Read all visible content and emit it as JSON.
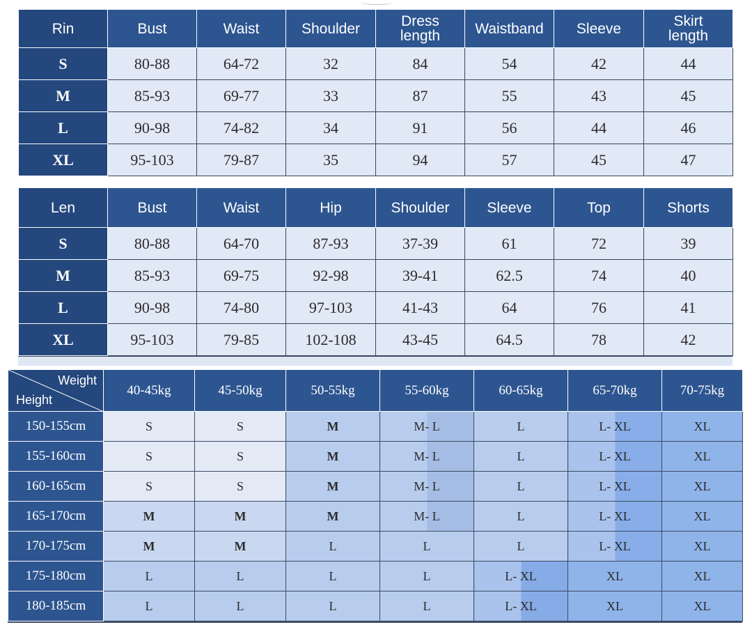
{
  "rin_table": {
    "headers": [
      {
        "line1": "Rin",
        "line2": ""
      },
      {
        "line1": "Bust",
        "line2": ""
      },
      {
        "line1": "Waist",
        "line2": ""
      },
      {
        "line1": "Shoulder",
        "line2": ""
      },
      {
        "line1": "Dress",
        "line2": "length"
      },
      {
        "line1": "Waistband",
        "line2": ""
      },
      {
        "line1": "Sleeve",
        "line2": ""
      },
      {
        "line1": "Skirt",
        "line2": "length"
      }
    ],
    "rows": [
      {
        "size": "S",
        "values": [
          "80-88",
          "64-72",
          "32",
          "84",
          "54",
          "42",
          "44"
        ]
      },
      {
        "size": "M",
        "values": [
          "85-93",
          "69-77",
          "33",
          "87",
          "55",
          "43",
          "45"
        ]
      },
      {
        "size": "L",
        "values": [
          "90-98",
          "74-82",
          "34",
          "91",
          "56",
          "44",
          "46"
        ]
      },
      {
        "size": "XL",
        "values": [
          "95-103",
          "79-87",
          "35",
          "94",
          "57",
          "45",
          "47"
        ]
      }
    ]
  },
  "len_table": {
    "headers": [
      "Len",
      "Bust",
      "Waist",
      "Hip",
      "Shoulder",
      "Sleeve",
      "Top",
      "Shorts"
    ],
    "rows": [
      {
        "size": "S",
        "values": [
          "80-88",
          "64-70",
          "87-93",
          "37-39",
          "61",
          "72",
          "39"
        ]
      },
      {
        "size": "M",
        "values": [
          "85-93",
          "69-75",
          "92-98",
          "39-41",
          "62.5",
          "74",
          "40"
        ]
      },
      {
        "size": "L",
        "values": [
          "90-98",
          "74-80",
          "97-103",
          "41-43",
          "64",
          "76",
          "41"
        ]
      },
      {
        "size": "XL",
        "values": [
          "95-103",
          "79-85",
          "102-108",
          "43-45",
          "64.5",
          "78",
          "42"
        ]
      }
    ]
  },
  "size_guide": {
    "corner_weight": "Weight",
    "corner_height": "Height",
    "weights": [
      "40-45kg",
      "45-50kg",
      "50-55kg",
      "55-60kg",
      "60-65kg",
      "65-70kg",
      "70-75kg"
    ],
    "rows": [
      {
        "height": "150-155cm",
        "cells": [
          "S",
          "S",
          "M",
          "M- L",
          "L",
          "L- XL",
          "XL"
        ]
      },
      {
        "height": "155-160cm",
        "cells": [
          "S",
          "S",
          "M",
          "M- L",
          "L",
          "L- XL",
          "XL"
        ]
      },
      {
        "height": "160-165cm",
        "cells": [
          "S",
          "S",
          "M",
          "M- L",
          "L",
          "L- XL",
          "XL"
        ]
      },
      {
        "height": "165-170cm",
        "cells": [
          "M",
          "M",
          "M",
          "M- L",
          "L",
          "L- XL",
          "XL"
        ]
      },
      {
        "height": "170-175cm",
        "cells": [
          "M",
          "M",
          "L",
          "L",
          "L",
          "L- XL",
          "XL"
        ]
      },
      {
        "height": "175-180cm",
        "cells": [
          "L",
          "L",
          "L",
          "L",
          "L- XL",
          "XL",
          "XL"
        ]
      },
      {
        "height": "180-185cm",
        "cells": [
          "L",
          "L",
          "L",
          "L",
          "L- XL",
          "XL",
          "XL"
        ]
      }
    ]
  },
  "colors": {
    "header_blue": "#2d5590",
    "label_blue": "#24477d",
    "cell_light": "#e1e8f6"
  }
}
